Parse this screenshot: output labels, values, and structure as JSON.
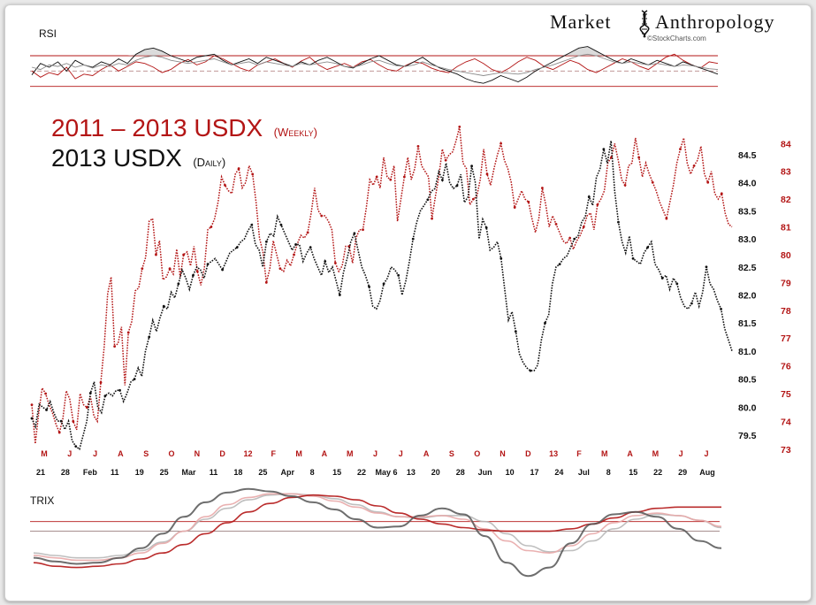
{
  "brand": {
    "word1": "Market",
    "word2": "Anthropology",
    "sub": "©StockCharts.com"
  },
  "title": {
    "line1_main": "2011 – 2013 USDX",
    "line1_sub": "(Weekly)",
    "line2_main": "2013 USDX",
    "line2_sub": "(Daily)"
  },
  "colors": {
    "red": "#b31515",
    "black": "#111111",
    "pink": "#e8a9a9",
    "grey": "#8a8a8a"
  },
  "chart_data": [
    {
      "type": "line",
      "panel": "main",
      "series": [
        {
          "name": "2013 USDX (Daily)",
          "color": "#111111",
          "axis": "left",
          "values": [
            79.8,
            79.65,
            80.05,
            80.0,
            79.95,
            80.1,
            79.9,
            79.75,
            79.75,
            79.6,
            79.75,
            79.4,
            79.3,
            79.25,
            79.5,
            79.75,
            80.25,
            80.45,
            80.0,
            79.9,
            80.2,
            80.25,
            80.2,
            80.3,
            80.3,
            80.1,
            80.25,
            80.45,
            80.5,
            80.7,
            80.55,
            81.0,
            81.25,
            81.55,
            81.35,
            81.6,
            81.8,
            81.75,
            82.05,
            81.95,
            82.2,
            82.45,
            82.3,
            82.1,
            82.35,
            82.5,
            82.45,
            82.3,
            82.55,
            82.6,
            82.65,
            82.55,
            82.45,
            82.6,
            82.75,
            82.8,
            82.85,
            82.95,
            83.0,
            83.15,
            83.25,
            82.9,
            82.8,
            82.5,
            82.95,
            83.1,
            83.05,
            83.4,
            83.25,
            83.1,
            82.95,
            82.8,
            82.9,
            82.9,
            82.6,
            82.75,
            82.85,
            82.65,
            82.5,
            82.35,
            82.6,
            82.4,
            82.5,
            82.25,
            82.0,
            82.4,
            82.65,
            82.95,
            83.1,
            82.8,
            82.5,
            82.35,
            82.15,
            81.8,
            81.75,
            81.9,
            82.2,
            82.3,
            82.5,
            82.45,
            82.35,
            82.0,
            82.25,
            82.6,
            83.0,
            83.3,
            83.5,
            83.6,
            83.7,
            83.85,
            83.9,
            84.2,
            84.05,
            84.35,
            84.0,
            83.9,
            83.95,
            84.15,
            83.65,
            83.75,
            84.3,
            84.0,
            83.0,
            83.35,
            83.2,
            82.8,
            82.85,
            82.95,
            82.65,
            82.1,
            81.55,
            81.7,
            81.35,
            80.95,
            80.8,
            80.7,
            80.65,
            80.65,
            80.75,
            81.2,
            81.5,
            81.65,
            82.2,
            82.5,
            82.55,
            82.65,
            82.7,
            82.85,
            83.0,
            83.05,
            83.3,
            83.4,
            83.75,
            83.6,
            84.1,
            84.25,
            84.6,
            84.35,
            84.75,
            83.85,
            83.3,
            82.95,
            82.75,
            83.05,
            82.65,
            82.6,
            82.55,
            82.75,
            82.85,
            82.95,
            82.55,
            82.45,
            82.3,
            82.35,
            82.1,
            82.3,
            82.2,
            81.95,
            81.8,
            81.75,
            81.85,
            82.05,
            81.8,
            82.05,
            82.5,
            82.2,
            82.1,
            81.9,
            81.75,
            81.4,
            81.2,
            81.0
          ]
        },
        {
          "name": "2011 – 2013 USDX (Weekly)",
          "color": "#b31515",
          "axis": "right",
          "values": [
            74.6,
            73.2,
            74.3,
            75.2,
            75.0,
            74.6,
            74.3,
            73.9,
            73.6,
            74.1,
            75.1,
            74.8,
            74.0,
            73.7,
            75.0,
            74.6,
            74.5,
            74.9,
            74.2,
            74.0,
            75.4,
            76.7,
            78.6,
            79.2,
            76.7,
            76.8,
            77.4,
            75.3,
            77.2,
            77.6,
            78.7,
            78.8,
            79.5,
            79.9,
            81.2,
            81.3,
            80.0,
            80.5,
            79.1,
            79.2,
            79.5,
            79.3,
            80.2,
            79.2,
            80.0,
            80.1,
            79.6,
            80.3,
            79.4,
            78.9,
            79.5,
            80.9,
            81.0,
            81.3,
            81.9,
            82.8,
            82.5,
            82.3,
            82.2,
            82.9,
            83.1,
            82.4,
            82.6,
            83.2,
            82.9,
            81.9,
            80.6,
            80.1,
            79.0,
            79.5,
            80.5,
            80.0,
            79.5,
            79.4,
            79.8,
            79.6,
            80.0,
            80.4,
            80.7,
            80.6,
            80.8,
            81.5,
            82.4,
            81.6,
            81.4,
            81.4,
            81.2,
            80.9,
            79.7,
            79.4,
            79.6,
            80.3,
            80.3,
            79.7,
            80.6,
            80.9,
            80.9,
            81.7,
            82.7,
            82.5,
            82.8,
            82.4,
            83.5,
            82.8,
            82.7,
            83.2,
            81.2,
            82.0,
            82.8,
            83.5,
            82.7,
            83.1,
            83.9,
            83.2,
            83.0,
            82.8,
            81.3,
            82.1,
            82.8,
            83.8,
            83.4,
            83.6,
            83.7,
            84.1,
            84.6,
            83.3,
            83.1,
            81.8,
            82.0,
            82.1,
            82.7,
            83.8,
            82.9,
            82.5,
            83.1,
            83.6,
            84.0,
            83.4,
            83.1,
            82.6,
            81.7,
            82.0,
            82.3,
            82.0,
            81.9,
            81.3,
            80.8,
            81.3,
            82.4,
            81.8,
            81.0,
            81.4,
            81.1,
            80.8,
            80.5,
            80.4,
            80.6,
            80.2,
            80.5,
            80.7,
            81.0,
            81.4,
            81.5,
            80.9,
            81.8,
            82.0,
            82.3,
            83.3,
            83.5,
            84.0,
            83.4,
            82.7,
            82.5,
            83.2,
            83.3,
            84.2,
            83.5,
            82.8,
            83.3,
            82.9,
            82.6,
            82.3,
            81.9,
            81.6,
            81.3,
            81.9,
            82.5,
            83.3,
            83.8,
            84.2,
            83.3,
            82.9,
            83.2,
            83.4,
            83.9,
            82.9,
            82.6,
            83.0,
            82.2,
            82.0,
            82.2,
            81.5,
            81.1,
            81.0
          ]
        }
      ],
      "y_left": {
        "ticks": [
          "79.5",
          "80.0",
          "80.5",
          "81.0",
          "81.5",
          "82.0",
          "82.5",
          "83.0",
          "83.5",
          "84.0",
          "84.5"
        ],
        "range": [
          79.2,
          84.8
        ]
      },
      "y_right": {
        "ticks": [
          "73",
          "74",
          "75",
          "76",
          "77",
          "78",
          "79",
          "80",
          "81",
          "82",
          "83",
          "84"
        ],
        "range": [
          72.9,
          84.2
        ]
      },
      "x_top_red": [
        "M",
        "J",
        "J",
        "A",
        "S",
        "O",
        "N",
        "D",
        "12",
        "F",
        "M",
        "A",
        "M",
        "J",
        "J",
        "A",
        "S",
        "O",
        "N",
        "D",
        "13",
        "F",
        "M",
        "A",
        "M",
        "J",
        "J"
      ],
      "x_bottom_black": [
        "21",
        "28",
        "Feb",
        "11",
        "19",
        "25",
        "Mar",
        "11",
        "18",
        "25",
        "Apr",
        "8",
        "15",
        "22",
        "May 6",
        "13",
        "20",
        "28",
        "Jun",
        "10",
        "17",
        "24",
        "Jul",
        "8",
        "15",
        "22",
        "29",
        "Aug"
      ]
    },
    {
      "type": "line",
      "panel": "rsi",
      "title": "RSI",
      "series": [
        {
          "name": "",
          "color": "#b31515",
          "values": [
            50,
            42,
            48,
            45,
            55,
            40,
            46,
            44,
            52,
            58,
            50,
            56,
            62,
            60,
            55,
            48,
            52,
            60,
            65,
            58,
            62,
            70,
            66,
            60,
            54,
            50,
            58,
            62,
            66,
            60,
            55,
            63,
            68,
            58,
            52,
            56,
            60,
            55,
            62,
            65,
            58,
            52,
            50,
            57,
            62,
            60,
            54,
            50,
            48,
            56,
            62,
            66,
            60,
            52,
            48,
            54,
            62,
            68,
            64,
            56,
            52,
            58,
            64,
            60,
            52,
            48,
            54,
            60,
            66,
            62,
            56,
            52,
            60,
            68,
            72,
            64,
            58,
            54,
            62,
            60
          ]
        },
        {
          "name": "",
          "color": "#111111",
          "values": [
            45,
            60,
            55,
            62,
            50,
            64,
            58,
            55,
            62,
            58,
            66,
            60,
            72,
            78,
            80,
            76,
            70,
            66,
            62,
            68,
            70,
            72,
            64,
            58,
            62,
            66,
            60,
            68,
            64,
            60,
            56,
            62,
            58,
            64,
            68,
            62,
            56,
            54,
            60,
            66,
            70,
            64,
            58,
            56,
            62,
            68,
            60,
            54,
            50,
            46,
            40,
            36,
            34,
            38,
            44,
            40,
            36,
            42,
            50,
            56,
            62,
            68,
            74,
            80,
            82,
            76,
            70,
            64,
            60,
            66,
            62,
            58,
            64,
            60,
            56,
            62,
            58,
            54,
            50,
            46
          ]
        },
        {
          "name": "",
          "color": "#8a8a8a",
          "values": [
            55,
            52,
            58,
            56,
            60,
            55,
            58,
            54,
            58,
            56,
            60,
            58,
            64,
            68,
            70,
            68,
            64,
            62,
            60,
            62,
            64,
            66,
            62,
            58,
            60,
            62,
            58,
            62,
            60,
            58,
            56,
            60,
            58,
            60,
            62,
            60,
            56,
            55,
            58,
            62,
            64,
            60,
            57,
            56,
            58,
            62,
            58,
            55,
            52,
            50,
            48,
            46,
            44,
            46,
            48,
            47,
            46,
            48,
            52,
            55,
            58,
            62,
            66,
            70,
            72,
            70,
            66,
            62,
            60,
            62,
            60,
            58,
            60,
            58,
            56,
            58,
            57,
            55,
            53,
            52
          ]
        }
      ],
      "ticks": [
        30,
        50,
        70
      ],
      "range": [
        25,
        85
      ]
    },
    {
      "type": "line",
      "panel": "trix",
      "title": "TRIX",
      "series": [
        {
          "name": "",
          "color": "#b31515",
          "values": [
            -0.34,
            -0.37,
            -0.38,
            -0.37,
            -0.35,
            -0.31,
            -0.26,
            -0.19,
            -0.1,
            -0.01,
            0.08,
            0.15,
            0.2,
            0.22,
            0.21,
            0.18,
            0.13,
            0.07,
            0.02,
            -0.02,
            -0.05,
            -0.07,
            -0.08,
            -0.08,
            -0.08,
            -0.06,
            -0.02,
            0.03,
            0.08,
            0.11,
            0.12,
            0.12,
            0.12
          ]
        },
        {
          "name": "",
          "color": "#555555",
          "values": [
            -0.3,
            -0.33,
            -0.35,
            -0.34,
            -0.3,
            -0.22,
            -0.1,
            0.04,
            0.16,
            0.24,
            0.27,
            0.25,
            0.21,
            0.16,
            0.1,
            0.02,
            -0.05,
            -0.04,
            0.05,
            0.11,
            0.06,
            -0.12,
            -0.34,
            -0.45,
            -0.38,
            -0.18,
            -0.02,
            0.06,
            0.08,
            0.04,
            -0.06,
            -0.16,
            -0.22
          ]
        },
        {
          "name": "",
          "color": "#e8a9a9",
          "values": [
            -0.28,
            -0.3,
            -0.32,
            -0.32,
            -0.3,
            -0.26,
            -0.18,
            -0.08,
            0.04,
            0.14,
            0.2,
            0.23,
            0.23,
            0.21,
            0.17,
            0.12,
            0.07,
            0.04,
            0.04,
            0.05,
            0.02,
            -0.06,
            -0.16,
            -0.24,
            -0.26,
            -0.2,
            -0.1,
            -0.01,
            0.05,
            0.07,
            0.05,
            0.01,
            -0.04
          ]
        },
        {
          "name": "",
          "color": "#b8b8b8",
          "values": [
            -0.26,
            -0.28,
            -0.3,
            -0.3,
            -0.28,
            -0.24,
            -0.17,
            -0.08,
            0.02,
            0.11,
            0.18,
            0.22,
            0.23,
            0.22,
            0.19,
            0.14,
            0.08,
            0.04,
            0.03,
            0.05,
            0.05,
            0.0,
            -0.1,
            -0.2,
            -0.25,
            -0.24,
            -0.16,
            -0.06,
            0.02,
            0.06,
            0.05,
            0.01,
            -0.05
          ]
        }
      ],
      "ref_lines": [
        0.0,
        -0.08
      ],
      "range": [
        -0.5,
        0.32
      ]
    }
  ]
}
